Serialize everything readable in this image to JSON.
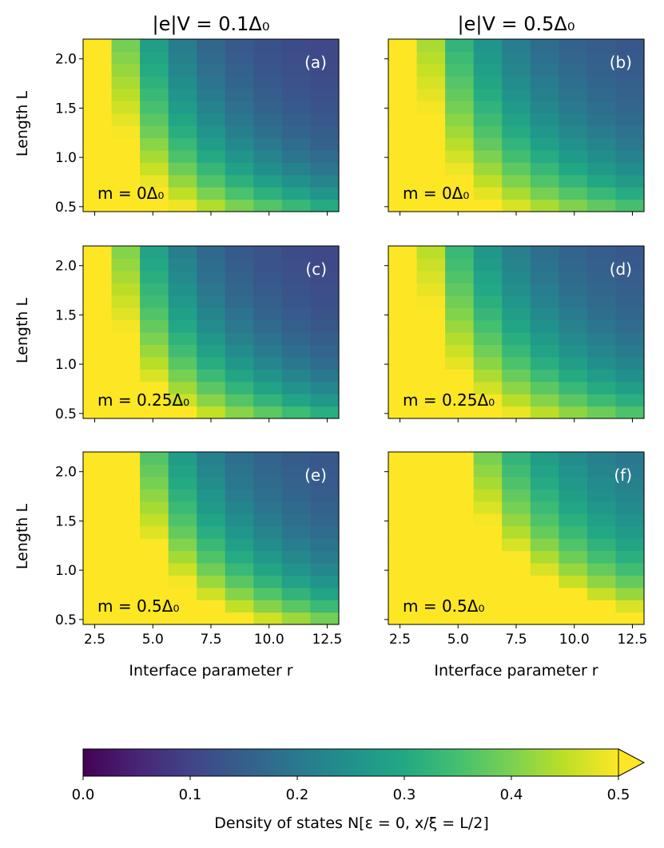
{
  "figure": {
    "column_titles": [
      "|e|V = 0.1Δ₀",
      "|e|V = 0.5Δ₀"
    ],
    "row_ylabel": "Length L",
    "xlabel": "Interface parameter r",
    "x_ticks": [
      "2.5",
      "5.0",
      "7.5",
      "10.0",
      "12.5"
    ],
    "y_ticks": [
      "0.5",
      "1.0",
      "1.5",
      "2.0"
    ],
    "colorbar": {
      "label": "Density of states N[ε = 0, x/ξ = L/2]",
      "ticks": [
        "0.0",
        "0.1",
        "0.2",
        "0.3",
        "0.4",
        "0.5"
      ],
      "range": [
        0,
        0.5
      ],
      "extend": "max",
      "colormap": "viridis"
    }
  },
  "chart_data": [
    {
      "type": "heatmap",
      "panel": "(a)",
      "col": 0,
      "row": 0,
      "title": "|e|V = 0.1Δ₀",
      "annotation": "m = 0Δ₀",
      "bias": 0.1,
      "m": 0,
      "x": {
        "min": 2.0,
        "max": 13.0,
        "n": 9
      },
      "y": {
        "min": 0.45,
        "max": 2.2,
        "n": 14
      },
      "zlim": [
        0,
        0.5
      ],
      "params": {
        "a": 0.29,
        "b": 0.55,
        "c": 0.1,
        "d": 0.5
      }
    },
    {
      "type": "heatmap",
      "panel": "(b)",
      "col": 1,
      "row": 0,
      "title": "|e|V = 0.5Δ₀",
      "annotation": "m = 0Δ₀",
      "bias": 0.5,
      "m": 0,
      "x": {
        "min": 2.0,
        "max": 13.0,
        "n": 9
      },
      "y": {
        "min": 0.45,
        "max": 2.2,
        "n": 14
      },
      "zlim": [
        0,
        0.5
      ],
      "params": {
        "a": 0.27,
        "b": 0.45,
        "c": 0.12,
        "d": 0.5
      }
    },
    {
      "type": "heatmap",
      "panel": "(c)",
      "col": 0,
      "row": 1,
      "title": "",
      "annotation": "m = 0.25Δ₀",
      "bias": 0.1,
      "m": 0.25,
      "x": {
        "min": 2.0,
        "max": 13.0,
        "n": 9
      },
      "y": {
        "min": 0.45,
        "max": 2.2,
        "n": 14
      },
      "zlim": [
        0,
        0.5
      ],
      "params": {
        "a": 0.3,
        "b": 0.55,
        "c": 0.1,
        "d": 0.55
      }
    },
    {
      "type": "heatmap",
      "panel": "(d)",
      "col": 1,
      "row": 1,
      "title": "",
      "annotation": "m = 0.25Δ₀",
      "bias": 0.5,
      "m": 0.25,
      "x": {
        "min": 2.0,
        "max": 13.0,
        "n": 9
      },
      "y": {
        "min": 0.45,
        "max": 2.2,
        "n": 14
      },
      "zlim": [
        0,
        0.5
      ],
      "params": {
        "a": 0.28,
        "b": 0.45,
        "c": 0.12,
        "d": 0.55
      }
    },
    {
      "type": "heatmap",
      "panel": "(e)",
      "col": 0,
      "row": 2,
      "title": "",
      "annotation": "m = 0.5Δ₀",
      "bias": 0.1,
      "m": 0.5,
      "x": {
        "min": 2.0,
        "max": 13.0,
        "n": 9
      },
      "y": {
        "min": 0.45,
        "max": 2.2,
        "n": 14
      },
      "zlim": [
        0,
        0.5
      ],
      "params": {
        "a": 0.35,
        "b": 0.5,
        "c": 0.12,
        "d": 0.75
      }
    },
    {
      "type": "heatmap",
      "panel": "(f)",
      "col": 1,
      "row": 2,
      "title": "",
      "annotation": "m = 0.5Δ₀",
      "bias": 0.5,
      "m": 0.5,
      "x": {
        "min": 2.0,
        "max": 13.0,
        "n": 9
      },
      "y": {
        "min": 0.45,
        "max": 2.2,
        "n": 14
      },
      "zlim": [
        0,
        0.5
      ],
      "params": {
        "a": 0.38,
        "b": 0.38,
        "c": 0.16,
        "d": 0.8
      }
    }
  ]
}
